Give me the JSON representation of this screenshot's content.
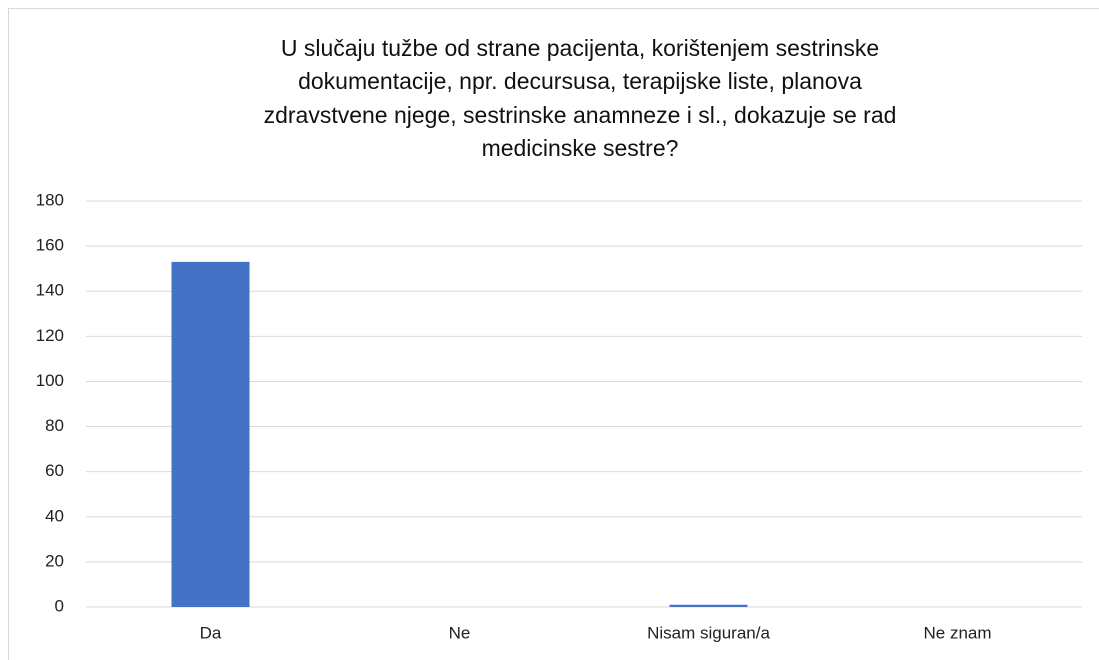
{
  "chart_data": {
    "type": "bar",
    "title": [
      "U slučaju tužbe od strane pacijenta, korištenjem sestrinske",
      "dokumentacije,  npr. decursusa, terapijske liste, planova",
      "zdravstvene njege, sestrinske anamneze i sl., dokazuje se rad",
      "medicinske sestre?"
    ],
    "categories": [
      "Da",
      "Ne",
      "Nisam siguran/a",
      "Ne znam"
    ],
    "values": [
      153,
      0,
      1,
      0
    ],
    "color": "#4472c4",
    "ylim": [
      0,
      180
    ],
    "yticks": [
      0,
      20,
      40,
      60,
      80,
      100,
      120,
      140,
      160,
      180
    ],
    "grid": true
  }
}
